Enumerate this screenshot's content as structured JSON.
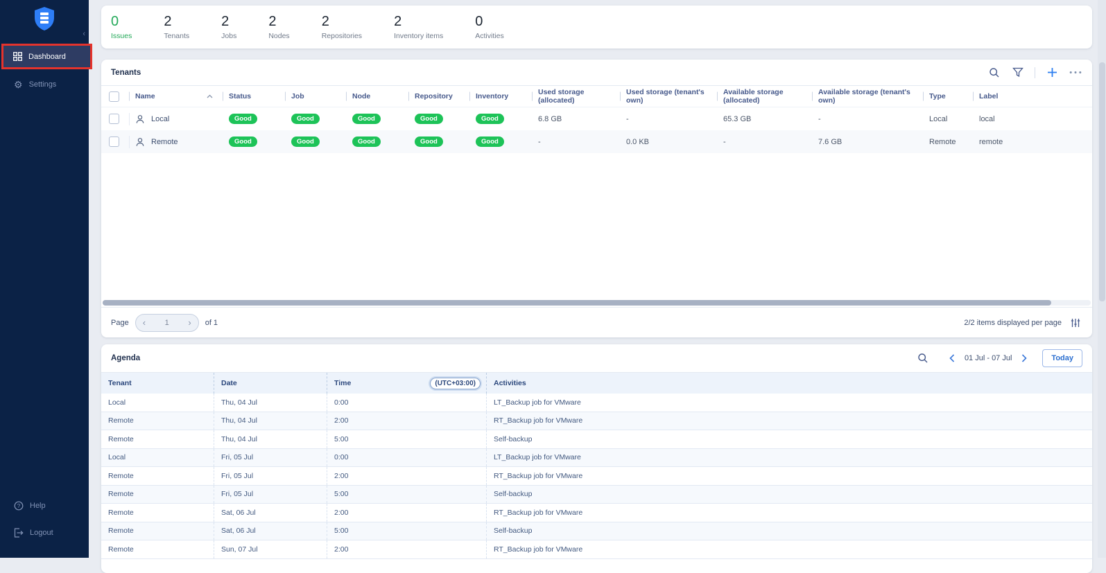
{
  "colors": {
    "sidebar_bg": "#0b2246",
    "accent_blue": "#2d7ff0",
    "badge_green": "#1dc358",
    "issues_green": "#23a959",
    "highlight_red": "#e5332c",
    "panel_bg": "#ffffff"
  },
  "sidebar": {
    "items": [
      {
        "label": "Dashboard",
        "active": true
      },
      {
        "label": "Settings",
        "active": false
      }
    ],
    "footer_items": [
      {
        "label": "Help"
      },
      {
        "label": "Logout"
      }
    ]
  },
  "stats": [
    {
      "value": "0",
      "label": "Issues",
      "highlight": true
    },
    {
      "value": "2",
      "label": "Tenants",
      "highlight": false
    },
    {
      "value": "2",
      "label": "Jobs",
      "highlight": false
    },
    {
      "value": "2",
      "label": "Nodes",
      "highlight": false
    },
    {
      "value": "2",
      "label": "Repositories",
      "highlight": false
    },
    {
      "value": "2",
      "label": "Inventory items",
      "highlight": false
    },
    {
      "value": "0",
      "label": "Activities",
      "highlight": false
    }
  ],
  "tenants_panel": {
    "title": "Tenants",
    "columns": [
      "Name",
      "Status",
      "Job",
      "Node",
      "Repository",
      "Inventory",
      "Used storage (allocated)",
      "Used storage (tenant's own)",
      "Available storage (allocated)",
      "Available storage (tenant's own)",
      "Type",
      "Label"
    ],
    "rows": [
      {
        "name": "Local",
        "status": "Good",
        "job": "Good",
        "node": "Good",
        "repository": "Good",
        "inventory": "Good",
        "used_allocated": "6.8 GB",
        "used_own": "-",
        "available_allocated": "65.3 GB",
        "available_own": "-",
        "type": "Local",
        "label": "local"
      },
      {
        "name": "Remote",
        "status": "Good",
        "job": "Good",
        "node": "Good",
        "repository": "Good",
        "inventory": "Good",
        "used_allocated": "-",
        "used_own": "0.0 KB",
        "available_allocated": "-",
        "available_own": "7.6 GB",
        "type": "Remote",
        "label": "remote"
      }
    ],
    "pagination": {
      "page_label": "Page",
      "current": "1",
      "of_label": "of 1",
      "items_text": "2/2 items displayed per page"
    }
  },
  "agenda_panel": {
    "title": "Agenda",
    "date_range": "01 Jul - 07 Jul",
    "today_label": "Today",
    "columns": {
      "tenant": "Tenant",
      "date": "Date",
      "time": "Time",
      "timezone": "(UTC+03:00)",
      "activities": "Activities"
    },
    "rows": [
      {
        "tenant": "Local",
        "date": "Thu, 04 Jul",
        "time": "0:00",
        "activity": "LT_Backup job for VMware"
      },
      {
        "tenant": "Remote",
        "date": "Thu, 04 Jul",
        "time": "2:00",
        "activity": "RT_Backup job for VMware"
      },
      {
        "tenant": "Remote",
        "date": "Thu, 04 Jul",
        "time": "5:00",
        "activity": "Self-backup"
      },
      {
        "tenant": "Local",
        "date": "Fri, 05 Jul",
        "time": "0:00",
        "activity": "LT_Backup job for VMware"
      },
      {
        "tenant": "Remote",
        "date": "Fri, 05 Jul",
        "time": "2:00",
        "activity": "RT_Backup job for VMware"
      },
      {
        "tenant": "Remote",
        "date": "Fri, 05 Jul",
        "time": "5:00",
        "activity": "Self-backup"
      },
      {
        "tenant": "Remote",
        "date": "Sat, 06 Jul",
        "time": "2:00",
        "activity": "RT_Backup job for VMware"
      },
      {
        "tenant": "Remote",
        "date": "Sat, 06 Jul",
        "time": "5:00",
        "activity": "Self-backup"
      },
      {
        "tenant": "Remote",
        "date": "Sun, 07 Jul",
        "time": "2:00",
        "activity": "RT_Backup job for VMware"
      }
    ]
  }
}
